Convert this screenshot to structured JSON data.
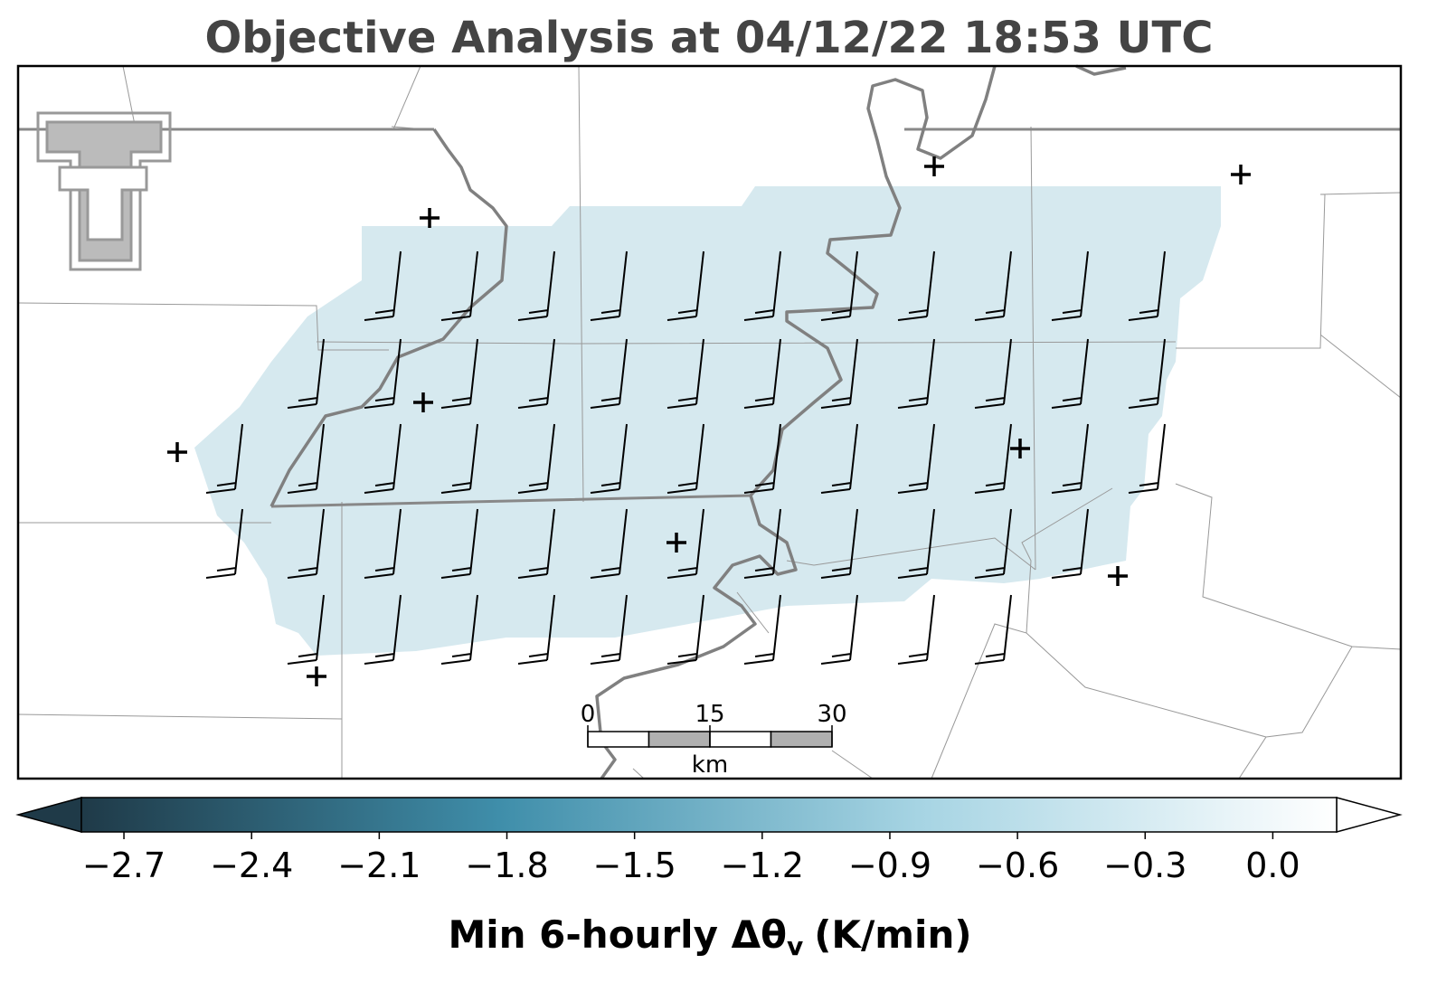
{
  "title": "Objective Analysis at 04/12/22 18:53 UTC",
  "colorbar": {
    "label": "Min 6-hourly Δθ",
    "label_subscript": "v",
    "label_unit": "(K/min)",
    "clim": [
      -2.8,
      0.15
    ],
    "colors": [
      "#1f3a48",
      "#3f8eaa",
      "#a6d4e3",
      "#ffffff"
    ],
    "ticks": [
      {
        "value": -2.7,
        "label": "−2.7"
      },
      {
        "value": -2.4,
        "label": "−2.4"
      },
      {
        "value": -2.1,
        "label": "−2.1"
      },
      {
        "value": -1.8,
        "label": "−1.8"
      },
      {
        "value": -1.5,
        "label": "−1.5"
      },
      {
        "value": -1.2,
        "label": "−1.2"
      },
      {
        "value": -0.9,
        "label": "−0.9"
      },
      {
        "value": -0.6,
        "label": "−0.6"
      },
      {
        "value": -0.3,
        "label": "−0.3"
      },
      {
        "value": 0,
        "label": "0.0"
      }
    ]
  },
  "scale_bar": {
    "ticks": [
      0,
      15,
      30
    ],
    "unit": "km"
  }
}
